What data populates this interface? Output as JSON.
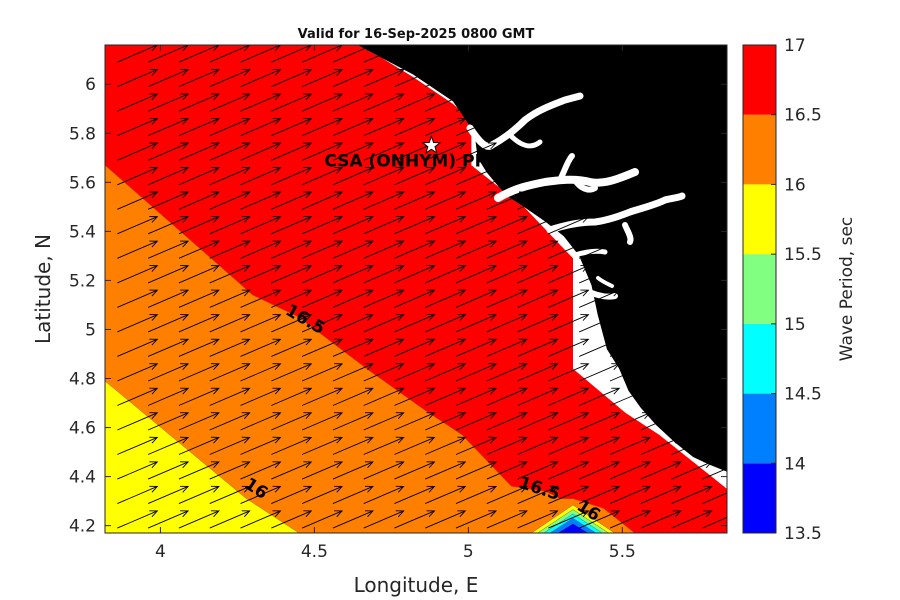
{
  "chart_data": {
    "type": "heatmap",
    "title": "Valid for 16-Sep-2025 0800 GMT",
    "xlabel": "Longitude, E",
    "ylabel": "Latitude, N",
    "xlim": [
      3.82,
      5.84
    ],
    "ylim": [
      4.17,
      6.16
    ],
    "xticks": [
      4,
      4.5,
      5,
      5.5
    ],
    "xtick_labels": [
      "4",
      "4.5",
      "5",
      "5.5"
    ],
    "yticks": [
      4.2,
      4.4,
      4.6,
      4.8,
      5,
      5.2,
      5.4,
      5.6,
      5.8,
      6
    ],
    "ytick_labels": [
      "4.2",
      "4.4",
      "4.6",
      "4.8",
      "5",
      "5.2",
      "5.4",
      "5.6",
      "5.8",
      "6"
    ],
    "colorbar": {
      "label": "Wave Period, sec",
      "levels": [
        13.5,
        14,
        14.5,
        15,
        15.5,
        16,
        16.5,
        17
      ],
      "tick_labels": [
        "13.5",
        "14",
        "14.5",
        "15",
        "15.5",
        "16",
        "16.5",
        "17"
      ],
      "colors": [
        "#0000ff",
        "#0080ff",
        "#00ffff",
        "#80ff80",
        "#ffff00",
        "#ff8000",
        "#ff0000"
      ]
    },
    "regions": [
      {
        "range": "16.5-17",
        "color": "#ff0000",
        "polygon": [
          [
            3.82,
            6.16
          ],
          [
            4.65,
            6.16
          ],
          [
            4.82,
            6.03
          ],
          [
            4.95,
            5.92
          ],
          [
            5.01,
            5.85
          ],
          [
            5.01,
            5.67
          ],
          [
            5.18,
            5.5
          ],
          [
            5.34,
            5.29
          ],
          [
            5.34,
            4.84
          ],
          [
            5.51,
            4.66
          ],
          [
            5.62,
            4.57
          ],
          [
            5.75,
            4.44
          ],
          [
            5.84,
            4.35
          ],
          [
            5.84,
            4.17
          ],
          [
            5.54,
            4.17
          ],
          [
            5.44,
            4.27
          ],
          [
            5.34,
            4.31
          ],
          [
            5.3,
            4.31
          ],
          [
            5.25,
            4.34
          ],
          [
            5.14,
            4.36
          ],
          [
            4.98,
            4.57
          ],
          [
            4.86,
            4.67
          ],
          [
            4.67,
            4.84
          ],
          [
            4.45,
            5.05
          ],
          [
            4.3,
            5.14
          ],
          [
            4.21,
            5.24
          ],
          [
            3.82,
            5.67
          ]
        ]
      },
      {
        "range": "16-16.5",
        "color": "#ff8000",
        "polygon": [
          [
            3.82,
            5.67
          ],
          [
            4.21,
            5.24
          ],
          [
            4.3,
            5.14
          ],
          [
            4.45,
            5.05
          ],
          [
            4.67,
            4.84
          ],
          [
            4.86,
            4.67
          ],
          [
            4.98,
            4.57
          ],
          [
            5.14,
            4.36
          ],
          [
            5.25,
            4.34
          ],
          [
            5.3,
            4.31
          ],
          [
            5.34,
            4.31
          ],
          [
            5.44,
            4.27
          ],
          [
            5.54,
            4.17
          ],
          [
            4.45,
            4.17
          ],
          [
            4.28,
            4.31
          ],
          [
            3.82,
            4.79
          ]
        ]
      },
      {
        "range": "15.5-16",
        "color": "#ffff00",
        "polygon": [
          [
            3.82,
            4.79
          ],
          [
            4.28,
            4.31
          ],
          [
            4.45,
            4.17
          ],
          [
            3.82,
            4.17
          ]
        ]
      }
    ],
    "low_period_bands": [
      {
        "range": "15.5-16",
        "color": "#ffff00",
        "polygon": [
          [
            5.205,
            4.17
          ],
          [
            5.34,
            4.284
          ],
          [
            5.475,
            4.17
          ]
        ]
      },
      {
        "range": "15-15.5",
        "color": "#80ff80",
        "polygon": [
          [
            5.225,
            4.17
          ],
          [
            5.34,
            4.266
          ],
          [
            5.455,
            4.17
          ]
        ]
      },
      {
        "range": "14.5-15",
        "color": "#00ffff",
        "polygon": [
          [
            5.245,
            4.17
          ],
          [
            5.34,
            4.248
          ],
          [
            5.435,
            4.17
          ]
        ]
      },
      {
        "range": "14-14.5",
        "color": "#0080ff",
        "polygon": [
          [
            5.265,
            4.17
          ],
          [
            5.34,
            4.23
          ],
          [
            5.415,
            4.17
          ]
        ]
      },
      {
        "range": "13.5-14",
        "color": "#0000ff",
        "polygon": [
          [
            5.29,
            4.17
          ],
          [
            5.34,
            4.208
          ],
          [
            5.39,
            4.17
          ]
        ]
      }
    ],
    "contour_labels": [
      {
        "text": "16.5",
        "lon": 4.47,
        "lat": 5.04,
        "angle": 30
      },
      {
        "text": "16",
        "lon": 4.31,
        "lat": 4.35,
        "angle": 33
      },
      {
        "text": "16.5",
        "lon": 5.23,
        "lat": 4.35,
        "angle": 18
      },
      {
        "text": "16",
        "lon": 5.39,
        "lat": 4.26,
        "angle": 33
      }
    ],
    "land": {
      "color": "#000000",
      "coast": [
        [
          4.64,
          6.16
        ],
        [
          4.82,
          6.04
        ],
        [
          4.95,
          5.93
        ],
        [
          5.02,
          5.8
        ],
        [
          5.03,
          5.7
        ],
        [
          5.06,
          5.64
        ],
        [
          5.1,
          5.58
        ],
        [
          5.13,
          5.54
        ],
        [
          5.18,
          5.5
        ],
        [
          5.25,
          5.44
        ],
        [
          5.31,
          5.38
        ],
        [
          5.36,
          5.3
        ],
        [
          5.4,
          5.18
        ],
        [
          5.42,
          5.06
        ],
        [
          5.45,
          4.92
        ],
        [
          5.49,
          4.84
        ],
        [
          5.52,
          4.75
        ],
        [
          5.56,
          4.68
        ],
        [
          5.61,
          4.61
        ],
        [
          5.67,
          4.54
        ],
        [
          5.73,
          4.48
        ],
        [
          5.78,
          4.45
        ],
        [
          5.84,
          4.42
        ]
      ]
    },
    "white_gap": {
      "polygon": [
        [
          4.65,
          6.16
        ],
        [
          4.64,
          6.16
        ],
        [
          4.82,
          6.04
        ],
        [
          4.95,
          5.93
        ],
        [
          5.02,
          5.8
        ],
        [
          5.03,
          5.7
        ],
        [
          5.06,
          5.64
        ],
        [
          5.1,
          5.58
        ],
        [
          5.13,
          5.54
        ],
        [
          5.18,
          5.5
        ],
        [
          5.25,
          5.44
        ],
        [
          5.31,
          5.38
        ],
        [
          5.36,
          5.3
        ],
        [
          5.4,
          5.18
        ],
        [
          5.42,
          5.06
        ],
        [
          5.45,
          4.92
        ],
        [
          5.49,
          4.84
        ],
        [
          5.52,
          4.75
        ],
        [
          5.56,
          4.68
        ],
        [
          5.61,
          4.61
        ],
        [
          5.67,
          4.54
        ],
        [
          5.73,
          4.48
        ],
        [
          5.78,
          4.45
        ],
        [
          5.84,
          4.42
        ],
        [
          5.84,
          4.35
        ],
        [
          5.75,
          4.44
        ],
        [
          5.62,
          4.57
        ],
        [
          5.51,
          4.66
        ],
        [
          5.34,
          4.84
        ],
        [
          5.34,
          5.29
        ],
        [
          5.18,
          5.5
        ],
        [
          5.01,
          5.67
        ],
        [
          5.01,
          5.85
        ],
        [
          4.95,
          5.92
        ],
        [
          4.82,
          6.03
        ]
      ]
    },
    "wave_direction": {
      "description": "uniform",
      "dlon": 0.13,
      "dlat": 0.07
    },
    "station": {
      "label": "CSA (ONHYM) PPL EB",
      "lon": 4.88,
      "lat": 5.75
    }
  }
}
